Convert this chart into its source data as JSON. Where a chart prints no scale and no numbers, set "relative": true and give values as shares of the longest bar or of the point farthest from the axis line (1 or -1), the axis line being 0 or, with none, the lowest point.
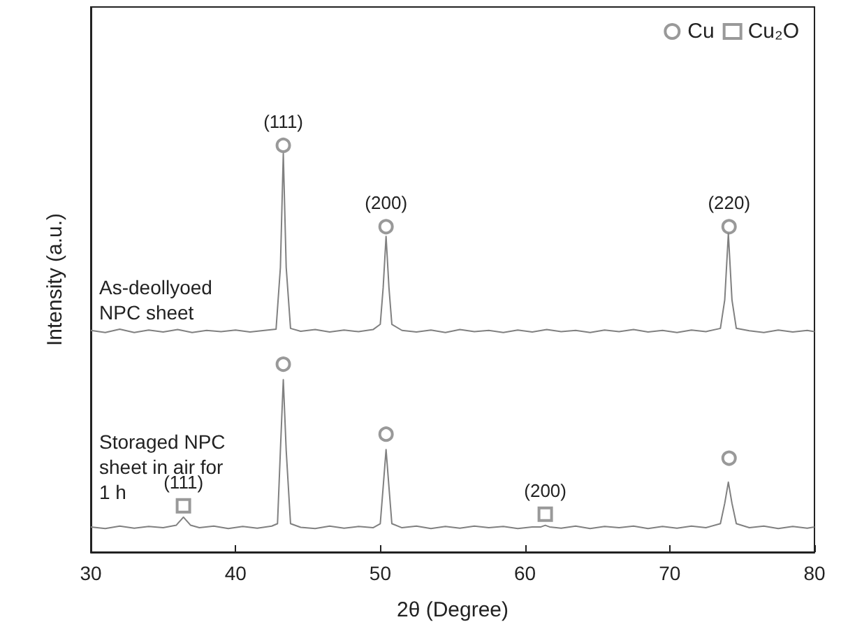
{
  "chart_data": {
    "type": "line",
    "relative": true,
    "xlabel": "2θ (Degree)",
    "ylabel": "Intensity (a.u.)",
    "xlim": [
      30,
      80
    ],
    "xticks": [
      30,
      40,
      50,
      60,
      70,
      80
    ],
    "legend": "top right",
    "grid": false,
    "line_style": "solid",
    "series": [
      {
        "name": "As-deollyoed NPC sheet",
        "color": "#808080",
        "x": [
          30,
          31,
          32,
          33,
          34,
          35,
          36,
          37,
          38,
          39,
          40,
          41,
          42,
          42.8,
          43.1,
          43.3,
          43.5,
          43.8,
          44.5,
          45.5,
          46.5,
          47.5,
          48.5,
          49.5,
          50.0,
          50.2,
          50.4,
          50.6,
          50.8,
          51.5,
          52.5,
          53.5,
          54.5,
          55.5,
          56.5,
          57.5,
          58.5,
          59.5,
          60.5,
          61.5,
          62.5,
          63.5,
          64.5,
          65.5,
          66.5,
          67.5,
          68.5,
          69.5,
          70.5,
          71.5,
          72.5,
          73.5,
          73.8,
          74.05,
          74.3,
          74.6,
          75.5,
          76.5,
          77.5,
          78.5,
          79.5,
          80
        ],
        "values": [
          0.545,
          0.54,
          0.548,
          0.54,
          0.546,
          0.541,
          0.547,
          0.54,
          0.545,
          0.542,
          0.546,
          0.541,
          0.545,
          0.548,
          0.7,
          0.98,
          0.7,
          0.55,
          0.543,
          0.547,
          0.541,
          0.546,
          0.542,
          0.547,
          0.56,
          0.65,
          0.776,
          0.65,
          0.56,
          0.545,
          0.541,
          0.546,
          0.54,
          0.547,
          0.542,
          0.545,
          0.54,
          0.546,
          0.541,
          0.547,
          0.542,
          0.545,
          0.54,
          0.546,
          0.542,
          0.547,
          0.541,
          0.545,
          0.54,
          0.546,
          0.542,
          0.55,
          0.62,
          0.783,
          0.62,
          0.55,
          0.544,
          0.54,
          0.546,
          0.541,
          0.545,
          0.542
        ]
      },
      {
        "name": "Storaged NPC sheet in air for 1 h",
        "color": "#808080",
        "x": [
          30,
          31,
          32,
          33,
          34,
          35,
          35.9,
          36.2,
          36.4,
          36.6,
          36.9,
          37.5,
          38.5,
          39.5,
          40.5,
          41.5,
          42.5,
          42.9,
          43.1,
          43.3,
          43.5,
          43.8,
          44.5,
          45.5,
          46.5,
          47.5,
          48.5,
          49.5,
          50.0,
          50.2,
          50.4,
          50.6,
          50.8,
          51.5,
          52.5,
          53.5,
          54.5,
          55.5,
          56.5,
          57.5,
          58.5,
          59.5,
          60.5,
          61.1,
          61.4,
          61.7,
          62.5,
          63.5,
          64.5,
          65.5,
          66.5,
          67.5,
          68.5,
          69.5,
          70.5,
          71.5,
          72.5,
          73.5,
          73.8,
          74.05,
          74.3,
          74.6,
          75.5,
          76.5,
          77.5,
          78.5,
          79.5,
          80
        ],
        "values": [
          0.062,
          0.058,
          0.064,
          0.059,
          0.063,
          0.06,
          0.066,
          0.078,
          0.086,
          0.078,
          0.066,
          0.06,
          0.064,
          0.058,
          0.063,
          0.059,
          0.064,
          0.07,
          0.25,
          0.424,
          0.25,
          0.07,
          0.061,
          0.058,
          0.064,
          0.059,
          0.063,
          0.06,
          0.07,
          0.16,
          0.252,
          0.16,
          0.07,
          0.06,
          0.064,
          0.058,
          0.063,
          0.059,
          0.064,
          0.06,
          0.063,
          0.058,
          0.062,
          0.062,
          0.066,
          0.062,
          0.059,
          0.064,
          0.058,
          0.063,
          0.06,
          0.064,
          0.058,
          0.063,
          0.059,
          0.064,
          0.06,
          0.07,
          0.12,
          0.172,
          0.12,
          0.07,
          0.06,
          0.064,
          0.058,
          0.063,
          0.059,
          0.062
        ]
      },
      {
        "name": "Cu",
        "type": "scatter",
        "marker": "circle",
        "color": "#808080",
        "x": [
          43.3,
          50.4,
          74.1,
          43.3,
          50.4,
          74.1
        ],
        "values": [
          1.0,
          0.8,
          0.8,
          0.462,
          0.29,
          0.231
        ]
      },
      {
        "name": "Cu₂O",
        "type": "scatter",
        "marker": "square",
        "color": "#808080",
        "x": [
          36.4,
          61.4
        ],
        "values": [
          0.114,
          0.093
        ]
      }
    ],
    "annotations": [
      {
        "text": "(111)",
        "x": 43.3,
        "y": 1.0
      },
      {
        "text": "(200)",
        "x": 50.4,
        "y": 0.8
      },
      {
        "text": "(220)",
        "x": 74.1,
        "y": 0.8
      },
      {
        "text": "(111)",
        "x": 36.4,
        "y": 0.114
      },
      {
        "text": "(200)",
        "x": 61.4,
        "y": 0.093
      }
    ]
  }
}
